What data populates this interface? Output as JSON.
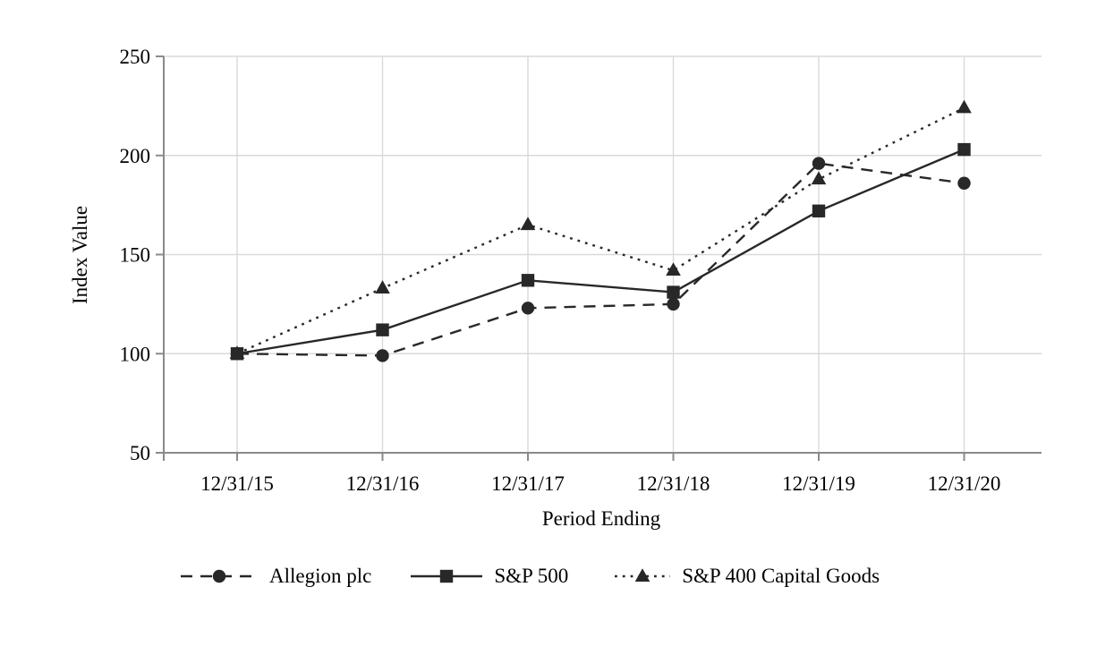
{
  "chart_data": {
    "type": "line",
    "title": "",
    "xlabel": "Period Ending",
    "ylabel": "Index Value",
    "categories": [
      "12/31/15",
      "12/31/16",
      "12/31/17",
      "12/31/18",
      "12/31/19",
      "12/31/20"
    ],
    "yticks": [
      50,
      100,
      150,
      200,
      250
    ],
    "ylim": [
      50,
      250
    ],
    "grid": true,
    "legend_position": "bottom",
    "series": [
      {
        "name": "Allegion plc",
        "marker": "circle",
        "line_style": "dashed",
        "values": [
          100,
          99,
          123,
          125,
          196,
          186
        ]
      },
      {
        "name": "S&P 500",
        "marker": "square",
        "line_style": "solid",
        "values": [
          100,
          112,
          137,
          131,
          172,
          203
        ]
      },
      {
        "name": "S&P 400 Capital Goods",
        "marker": "triangle",
        "line_style": "dotted",
        "values": [
          100,
          133,
          165,
          142,
          188,
          224
        ]
      }
    ],
    "colors": {
      "series": "#282828",
      "grid": "#d9d9d9",
      "axis": "#8a8a8a",
      "text": "#000000",
      "background": "#ffffff"
    }
  }
}
